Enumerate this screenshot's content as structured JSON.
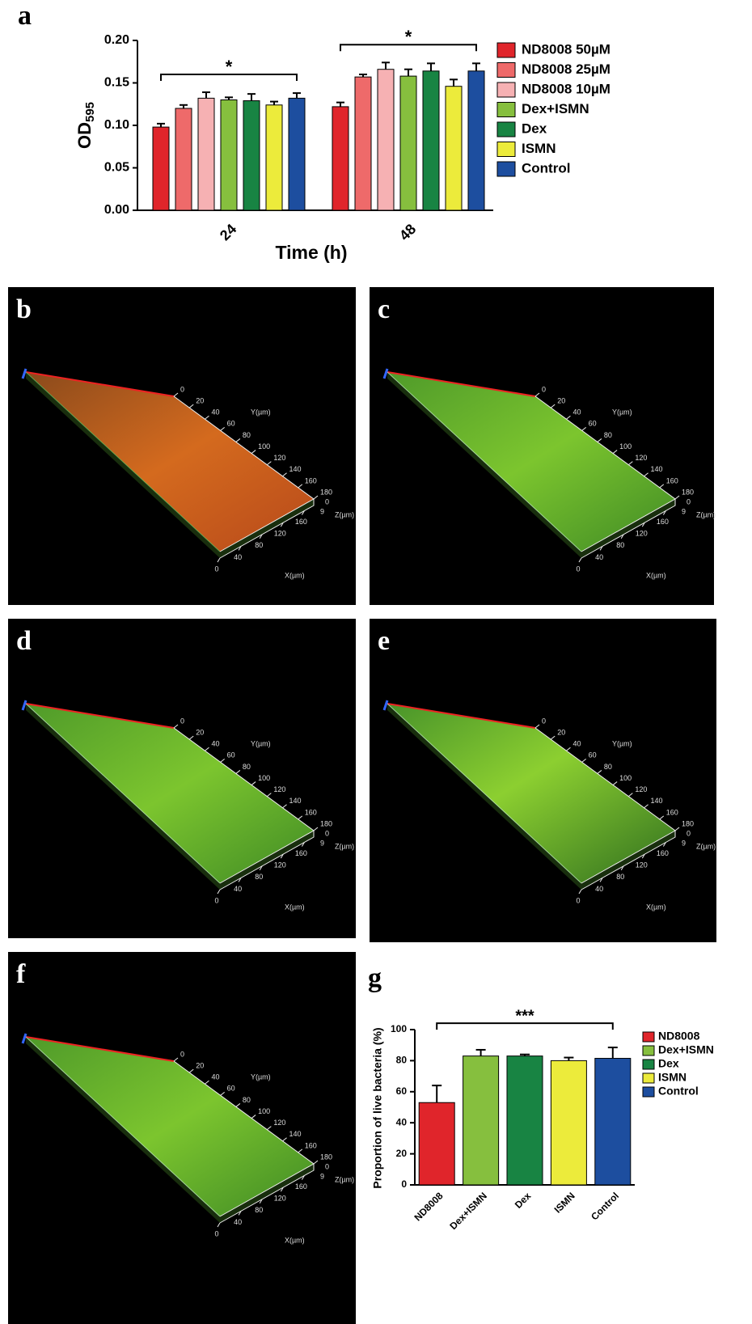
{
  "chart_data": [
    {
      "type": "grouped-bar",
      "panel_label": "a",
      "y_label": "OD",
      "y_label_sub": "595",
      "x_label": "Time (h)",
      "categories": [
        "24",
        "48"
      ],
      "series": [
        {
          "name": "ND8008 50µM",
          "color": "#e0252b",
          "values": [
            0.098,
            0.122
          ],
          "errors": [
            0.004,
            0.005
          ]
        },
        {
          "name": "ND8008 25µM",
          "color": "#ee6a6a",
          "values": [
            0.12,
            0.157
          ],
          "errors": [
            0.004,
            0.003
          ]
        },
        {
          "name": "ND8008 10µM",
          "color": "#f6b1b3",
          "values": [
            0.132,
            0.166
          ],
          "errors": [
            0.007,
            0.008
          ]
        },
        {
          "name": "Dex+ISMN",
          "color": "#86bf3e",
          "values": [
            0.13,
            0.158
          ],
          "errors": [
            0.003,
            0.008
          ]
        },
        {
          "name": "Dex",
          "color": "#188443",
          "values": [
            0.129,
            0.164
          ],
          "errors": [
            0.008,
            0.009
          ]
        },
        {
          "name": "ISMN",
          "color": "#eceb3b",
          "values": [
            0.124,
            0.146
          ],
          "errors": [
            0.004,
            0.008
          ]
        },
        {
          "name": "Control",
          "color": "#1d4e9f",
          "values": [
            0.132,
            0.164
          ],
          "errors": [
            0.006,
            0.009
          ]
        }
      ],
      "annotations": [
        "*",
        "*"
      ],
      "ylim": [
        0,
        0.2
      ],
      "yticks": [
        {
          "value": 0,
          "label": "0.00"
        },
        {
          "value": 0.05,
          "label": "0.05"
        },
        {
          "value": 0.1,
          "label": "0.10"
        },
        {
          "value": 0.15,
          "label": "0.15"
        },
        {
          "value": 0.2,
          "label": "0.20"
        }
      ]
    },
    {
      "type": "bar",
      "panel_label": "g",
      "y_label": "Proportion of live bacteria (%)",
      "categories": [
        "ND8008",
        "Dex+ISMN",
        "Dex",
        "ISMN",
        "Control"
      ],
      "values": [
        53,
        83,
        83,
        80,
        81.5
      ],
      "errors": [
        11,
        4,
        1,
        2,
        7
      ],
      "colors": [
        "#e0252b",
        "#86bf3e",
        "#188443",
        "#eceb3b",
        "#1d4e9f"
      ],
      "annotations": [
        "***"
      ],
      "ylim": [
        0,
        100
      ],
      "yticks": [
        0,
        20,
        40,
        60,
        80,
        100
      ]
    }
  ],
  "panels": [
    {
      "label": "b",
      "y_axis_label": "Y(µm)",
      "y_ticks": [
        "0",
        "20",
        "40",
        "60",
        "80",
        "100",
        "120",
        "140",
        "160",
        "180"
      ],
      "z_axis_label": "Z(µm)",
      "z_ticks": [
        "0",
        "9"
      ],
      "x_axis_label": "X(µm)",
      "x_ticks": [
        "0",
        "40",
        "80",
        "120",
        "160"
      ]
    },
    {
      "label": "c",
      "y_axis_label": "Y(µm)",
      "y_ticks": [
        "0",
        "20",
        "40",
        "60",
        "80",
        "100",
        "120",
        "140",
        "160",
        "180"
      ],
      "z_axis_label": "Z(µm)",
      "z_ticks": [
        "0",
        "9"
      ],
      "x_axis_label": "X(µm)",
      "x_ticks": [
        "0",
        "40",
        "80",
        "120",
        "160"
      ]
    },
    {
      "label": "d",
      "y_axis_label": "Y(µm)",
      "y_ticks": [
        "0",
        "20",
        "40",
        "60",
        "80",
        "100",
        "120",
        "140",
        "160",
        "180"
      ],
      "z_axis_label": "Z(µm)",
      "z_ticks": [
        "0",
        "9"
      ],
      "x_axis_label": "X(µm)",
      "x_ticks": [
        "0",
        "40",
        "80",
        "120",
        "160"
      ]
    },
    {
      "label": "e",
      "y_axis_label": "Y(µm)",
      "y_ticks": [
        "0",
        "20",
        "40",
        "60",
        "80",
        "100",
        "120",
        "140",
        "160",
        "180"
      ],
      "z_axis_label": "Z(µm)",
      "z_ticks": [
        "0",
        "9"
      ],
      "x_axis_label": "X(µm)",
      "x_ticks": [
        "0",
        "40",
        "80",
        "120",
        "160"
      ]
    },
    {
      "label": "f",
      "y_axis_label": "Y(µm)",
      "y_ticks": [
        "0",
        "20",
        "40",
        "60",
        "80",
        "100",
        "120",
        "140",
        "160",
        "180"
      ],
      "z_axis_label": "Z(µm)",
      "z_ticks": [
        "0",
        "9"
      ],
      "x_axis_label": "X(µm)",
      "x_ticks": [
        "0",
        "40",
        "80",
        "120",
        "160"
      ]
    }
  ]
}
